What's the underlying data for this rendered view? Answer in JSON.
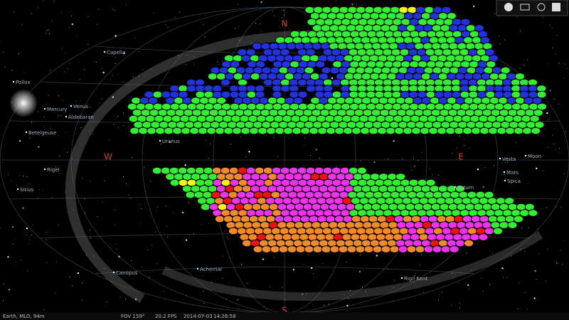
{
  "compass": [
    "N",
    "W",
    "E",
    "S"
  ],
  "objects": [
    "Capella",
    "Pollux",
    "Mercury",
    "Venus",
    "Aldebaran",
    "Betelgeuse",
    "Uranus",
    "Rigel",
    "Sirius",
    "Moon",
    "Vesta",
    "Mars",
    "Spica",
    "Saturn",
    "Canopus",
    "Achernar",
    "Rigil Kent"
  ],
  "status": {
    "location": "Earth, MLO, 94m",
    "fov": "FOV 159°",
    "fps": "20.2 FPS",
    "date": "2014-07-03",
    "time": "14:28:58"
  }
}
